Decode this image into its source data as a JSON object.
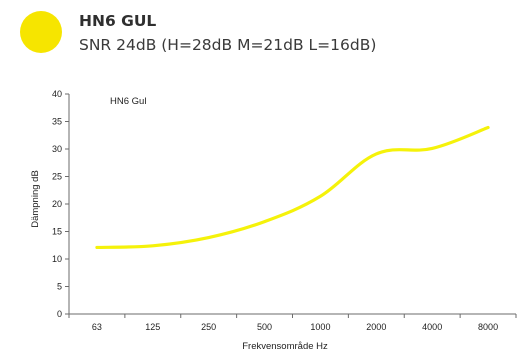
{
  "header": {
    "title": "HN6 GUL",
    "subtitle": "SNR 24dB (H=28dB M=21dB L=16dB)",
    "swatch_color": "#f6e500"
  },
  "chart_data": {
    "type": "line",
    "title": "HN6 Gul",
    "xlabel": "Frekvensområde Hz",
    "ylabel": "Dämpning dB",
    "categories": [
      "63",
      "125",
      "250",
      "500",
      "1000",
      "2000",
      "4000",
      "8000"
    ],
    "series": [
      {
        "values": [
          12.1,
          12.4,
          13.9,
          16.8,
          21.4,
          29.1,
          30.1,
          33.9
        ],
        "color": "#f5f20a"
      }
    ],
    "ylim": [
      0,
      40
    ],
    "yticks": [
      0,
      5,
      10,
      15,
      20,
      25,
      30,
      35,
      40
    ],
    "grid": false
  }
}
